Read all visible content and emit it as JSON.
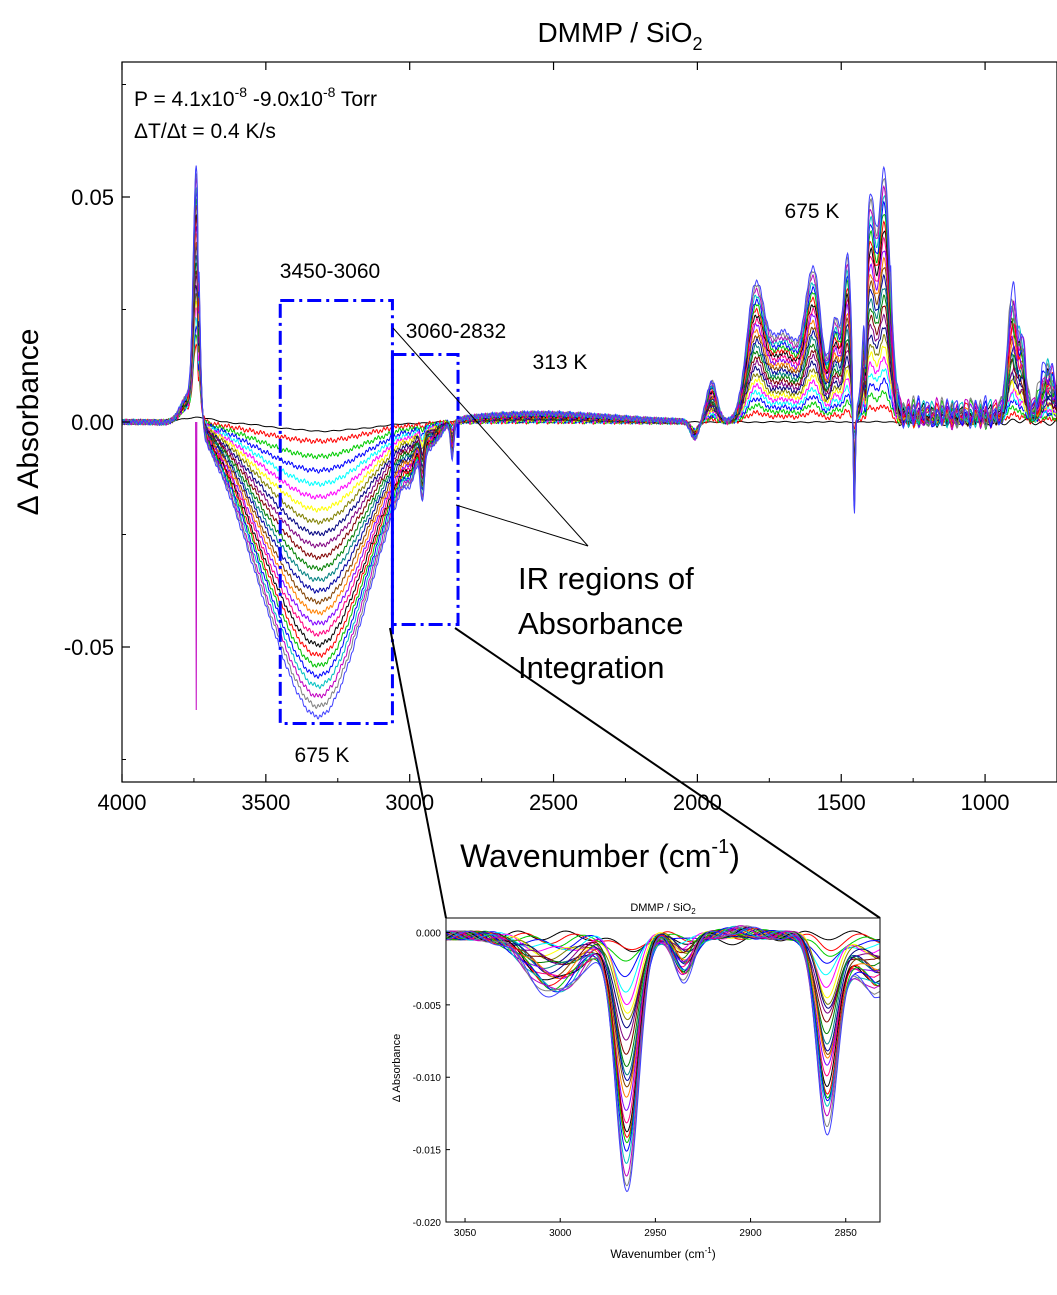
{
  "chart_data": [
    {
      "type": "line",
      "title": "DMMP / SiO",
      "title_subscript": "2",
      "xlabel": "Wavenumber (cm",
      "xlabel_superscript": "-1",
      "xlabel_suffix": ")",
      "ylabel": "Δ Absorbance",
      "xlim": [
        4000,
        750
      ],
      "ylim": [
        -0.08,
        0.08
      ],
      "x_reversed": true,
      "x_ticks": [
        4000,
        3500,
        3000,
        2500,
        2000,
        1500,
        1000
      ],
      "x_tick_labels": [
        "4000",
        "3500",
        "3000",
        "2500",
        "2000",
        "1500",
        "1000"
      ],
      "y_ticks": [
        0.05,
        0.0,
        -0.05
      ],
      "y_tick_labels": [
        "0.05",
        "0.00",
        "-0.05"
      ],
      "grid": false,
      "num_curves": 26,
      "temperature_range_K": [
        313,
        675
      ],
      "series_colors": [
        "#000000",
        "#ff0000",
        "#00cc00",
        "#0000ff",
        "#00ffff",
        "#ff00ff",
        "#ffff00",
        "#808000",
        "#000080",
        "#800080",
        "#800000",
        "#008000",
        "#008080",
        "#0000a0",
        "#804000",
        "#ff8000",
        "#8000ff",
        "#ff0080",
        "#000000",
        "#ff0000",
        "#00c000",
        "#0000ff",
        "#00c0c0",
        "#c000c0",
        "#808080",
        "#4040ff"
      ],
      "annotations": {
        "pressure_prefix": "P = 4.1x10",
        "pressure_exp1": "-8",
        "pressure_mid": " -9.0x10",
        "pressure_exp2": "-8",
        "pressure_suffix": " Torr",
        "rate": "ΔT/Δt = 0.4 K/s",
        "region1": "3450-3060",
        "region2": "3060-2832",
        "temp_low": "313 K",
        "temp_high_top": "675 K",
        "temp_high_bottom": "675 K",
        "ir_regions": [
          "IR regions of",
          "Absorbance",
          "Integration"
        ]
      },
      "integration_regions": [
        {
          "x_range": [
            3450,
            3060
          ],
          "y_range": [
            -0.067,
            0.027
          ]
        },
        {
          "x_range": [
            3060,
            2832
          ],
          "y_range": [
            -0.045,
            0.015
          ]
        }
      ],
      "peaks_675K": [
        {
          "x": 3740,
          "y": 0.054
        },
        {
          "x": 3300,
          "y": -0.061
        },
        {
          "x": 1800,
          "y": 0.027
        },
        {
          "x": 1590,
          "y": 0.039
        },
        {
          "x": 1350,
          "y": 0.056
        },
        {
          "x": 900,
          "y": 0.033
        }
      ]
    },
    {
      "type": "line",
      "title": "DMMP / SiO",
      "title_subscript": "2",
      "xlabel": "Wavenumber (cm",
      "xlabel_superscript": "-1",
      "xlabel_suffix": ")",
      "ylabel": "Δ Absorbance",
      "xlim": [
        3060,
        2832
      ],
      "ylim": [
        -0.02,
        0.001
      ],
      "x_reversed": true,
      "x_ticks": [
        3050,
        3000,
        2950,
        2900,
        2850
      ],
      "x_tick_labels": [
        "3050",
        "3000",
        "2950",
        "2900",
        "2850"
      ],
      "y_ticks": [
        0.0,
        -0.005,
        -0.01,
        -0.015,
        -0.02
      ],
      "y_tick_labels": [
        "0.000",
        "-0.005",
        "-0.010",
        "-0.015",
        "-0.020"
      ],
      "grid": false,
      "num_curves": 26,
      "peaks_675K": [
        {
          "x": 3000,
          "y": -0.0045
        },
        {
          "x": 2965,
          "y": -0.0175
        },
        {
          "x": 2935,
          "y": -0.0037
        },
        {
          "x": 2860,
          "y": -0.0127
        }
      ]
    }
  ]
}
